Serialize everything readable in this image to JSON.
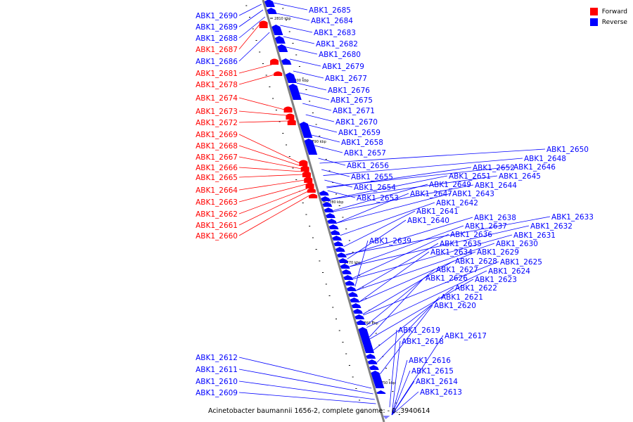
{
  "caption": "Acinetobacter baumannii 1656-2, complete genome: - 0..3940614",
  "legend": [
    {
      "label": "Forward",
      "color": "#ff0000"
    },
    {
      "label": "Reverse",
      "color": "#0000ff"
    }
  ],
  "colors": {
    "forward": "#ff0000",
    "reverse": "#0000ff",
    "backbone": "#808080"
  },
  "scale_ticks": [
    "2810 kbp",
    "2800 kbp",
    "2790 kbp",
    "2780 kbp",
    "2770 kbp",
    "2760 kbp",
    "2750 kbp"
  ],
  "genes_left": [
    {
      "name": "ABK1_2690",
      "strand": "reverse"
    },
    {
      "name": "ABK1_2689",
      "strand": "reverse"
    },
    {
      "name": "ABK1_2688",
      "strand": "reverse"
    },
    {
      "name": "ABK1_2687",
      "strand": "forward"
    },
    {
      "name": "ABK1_2686",
      "strand": "reverse"
    },
    {
      "name": "ABK1_2681",
      "strand": "forward"
    },
    {
      "name": "ABK1_2678",
      "strand": "forward"
    },
    {
      "name": "ABK1_2674",
      "strand": "forward"
    },
    {
      "name": "ABK1_2673",
      "strand": "forward"
    },
    {
      "name": "ABK1_2672",
      "strand": "forward"
    },
    {
      "name": "ABK1_2669",
      "strand": "forward"
    },
    {
      "name": "ABK1_2668",
      "strand": "forward"
    },
    {
      "name": "ABK1_2667",
      "strand": "forward"
    },
    {
      "name": "ABK1_2666",
      "strand": "forward"
    },
    {
      "name": "ABK1_2665",
      "strand": "forward"
    },
    {
      "name": "ABK1_2664",
      "strand": "forward"
    },
    {
      "name": "ABK1_2663",
      "strand": "forward"
    },
    {
      "name": "ABK1_2662",
      "strand": "forward"
    },
    {
      "name": "ABK1_2661",
      "strand": "forward"
    },
    {
      "name": "ABK1_2660",
      "strand": "forward"
    },
    {
      "name": "ABK1_2612",
      "strand": "reverse"
    },
    {
      "name": "ABK1_2611",
      "strand": "reverse"
    },
    {
      "name": "ABK1_2610",
      "strand": "reverse"
    },
    {
      "name": "ABK1_2609",
      "strand": "reverse"
    }
  ],
  "genes_right": [
    {
      "name": "ABK1_2685",
      "strand": "reverse"
    },
    {
      "name": "ABK1_2684",
      "strand": "reverse"
    },
    {
      "name": "ABK1_2683",
      "strand": "reverse"
    },
    {
      "name": "ABK1_2682",
      "strand": "reverse"
    },
    {
      "name": "ABK1_2680",
      "strand": "reverse"
    },
    {
      "name": "ABK1_2679",
      "strand": "reverse"
    },
    {
      "name": "ABK1_2677",
      "strand": "reverse"
    },
    {
      "name": "ABK1_2676",
      "strand": "reverse"
    },
    {
      "name": "ABK1_2675",
      "strand": "reverse"
    },
    {
      "name": "ABK1_2671",
      "strand": "reverse"
    },
    {
      "name": "ABK1_2670",
      "strand": "reverse"
    },
    {
      "name": "ABK1_2659",
      "strand": "reverse"
    },
    {
      "name": "ABK1_2658",
      "strand": "reverse"
    },
    {
      "name": "ABK1_2657",
      "strand": "reverse"
    },
    {
      "name": "ABK1_2656",
      "strand": "reverse"
    },
    {
      "name": "ABK1_2655",
      "strand": "reverse"
    },
    {
      "name": "ABK1_2654",
      "strand": "reverse"
    },
    {
      "name": "ABK1_2653",
      "strand": "reverse"
    },
    {
      "name": "ABK1_2650",
      "strand": "reverse"
    },
    {
      "name": "ABK1_2648",
      "strand": "reverse"
    },
    {
      "name": "ABK1_2652",
      "strand": "reverse"
    },
    {
      "name": "ABK1_2646",
      "strand": "reverse"
    },
    {
      "name": "ABK1_2651",
      "strand": "reverse"
    },
    {
      "name": "ABK1_2645",
      "strand": "reverse"
    },
    {
      "name": "ABK1_2649",
      "strand": "reverse"
    },
    {
      "name": "ABK1_2644",
      "strand": "reverse"
    },
    {
      "name": "ABK1_2647",
      "strand": "reverse"
    },
    {
      "name": "ABK1_2643",
      "strand": "reverse"
    },
    {
      "name": "ABK1_2642",
      "strand": "reverse"
    },
    {
      "name": "ABK1_2641",
      "strand": "reverse"
    },
    {
      "name": "ABK1_2640",
      "strand": "reverse"
    },
    {
      "name": "ABK1_2638",
      "strand": "reverse"
    },
    {
      "name": "ABK1_2633",
      "strand": "reverse"
    },
    {
      "name": "ABK1_2637",
      "strand": "reverse"
    },
    {
      "name": "ABK1_2632",
      "strand": "reverse"
    },
    {
      "name": "ABK1_2636",
      "strand": "reverse"
    },
    {
      "name": "ABK1_2631",
      "strand": "reverse"
    },
    {
      "name": "ABK1_2639",
      "strand": "reverse"
    },
    {
      "name": "ABK1_2635",
      "strand": "reverse"
    },
    {
      "name": "ABK1_2630",
      "strand": "reverse"
    },
    {
      "name": "ABK1_2634",
      "strand": "reverse"
    },
    {
      "name": "ABK1_2629",
      "strand": "reverse"
    },
    {
      "name": "ABK1_2628",
      "strand": "reverse"
    },
    {
      "name": "ABK1_2625",
      "strand": "reverse"
    },
    {
      "name": "ABK1_2627",
      "strand": "reverse"
    },
    {
      "name": "ABK1_2624",
      "strand": "reverse"
    },
    {
      "name": "ABK1_2626",
      "strand": "reverse"
    },
    {
      "name": "ABK1_2623",
      "strand": "reverse"
    },
    {
      "name": "ABK1_2622",
      "strand": "reverse"
    },
    {
      "name": "ABK1_2621",
      "strand": "reverse"
    },
    {
      "name": "ABK1_2620",
      "strand": "reverse"
    },
    {
      "name": "ABK1_2619",
      "strand": "reverse"
    },
    {
      "name": "ABK1_2617",
      "strand": "reverse"
    },
    {
      "name": "ABK1_2618",
      "strand": "reverse"
    },
    {
      "name": "ABK1_2616",
      "strand": "reverse"
    },
    {
      "name": "ABK1_2615",
      "strand": "reverse"
    },
    {
      "name": "ABK1_2614",
      "strand": "reverse"
    },
    {
      "name": "ABK1_2613",
      "strand": "reverse"
    }
  ]
}
